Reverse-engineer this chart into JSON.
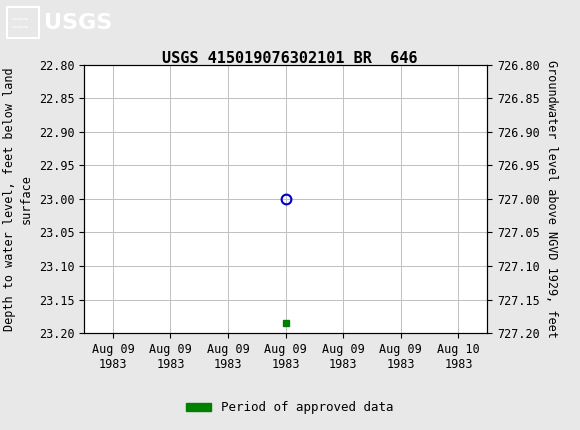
{
  "title": "USGS 415019076302101 BR  646",
  "ylabel_left": "Depth to water level, feet below land\nsurface",
  "ylabel_right": "Groundwater level above NGVD 1929, feet",
  "ylim_left": [
    22.8,
    23.2
  ],
  "ylim_right": [
    726.8,
    727.2
  ],
  "yticks_left": [
    22.8,
    22.85,
    22.9,
    22.95,
    23.0,
    23.05,
    23.1,
    23.15,
    23.2
  ],
  "yticks_right": [
    726.8,
    726.85,
    726.9,
    726.95,
    727.0,
    727.05,
    727.1,
    727.15,
    727.2
  ],
  "ytick_labels_left": [
    "22.80",
    "22.85",
    "22.90",
    "22.95",
    "23.00",
    "23.05",
    "23.10",
    "23.15",
    "23.20"
  ],
  "ytick_labels_right": [
    "726.80",
    "726.85",
    "726.90",
    "726.95",
    "727.00",
    "727.05",
    "727.10",
    "727.15",
    "727.20"
  ],
  "data_point_y": 23.0,
  "data_point_color": "#0000cc",
  "green_square_y": 23.185,
  "green_color": "#008000",
  "header_bg_color": "#006633",
  "header_text_color": "#ffffff",
  "plot_bg_color": "#ffffff",
  "fig_bg_color": "#e8e8e8",
  "grid_color": "#c0c0c0",
  "tick_label_fontsize": 8.5,
  "title_fontsize": 11,
  "axis_label_fontsize": 8.5,
  "legend_label": "Period of approved data",
  "font_family": "DejaVu Sans Mono",
  "x_tick_labels": [
    "Aug 09\n1983",
    "Aug 09\n1983",
    "Aug 09\n1983",
    "Aug 09\n1983",
    "Aug 09\n1983",
    "Aug 09\n1983",
    "Aug 10\n1983"
  ],
  "x_data": 3,
  "x_min": -0.5,
  "x_max": 6.5
}
